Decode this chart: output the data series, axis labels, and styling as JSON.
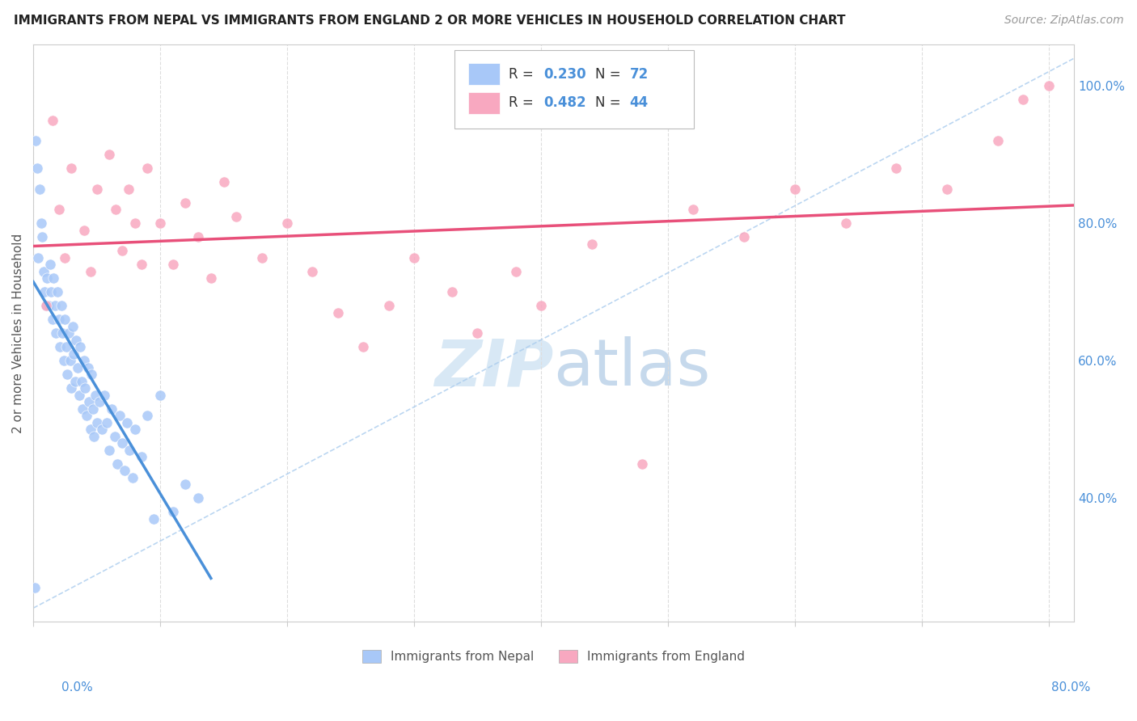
{
  "title": "IMMIGRANTS FROM NEPAL VS IMMIGRANTS FROM ENGLAND 2 OR MORE VEHICLES IN HOUSEHOLD CORRELATION CHART",
  "source": "Source: ZipAtlas.com",
  "ylabel": "2 or more Vehicles in Household",
  "right_yticks": [
    "40.0%",
    "60.0%",
    "80.0%",
    "100.0%"
  ],
  "right_ytick_vals": [
    0.4,
    0.6,
    0.8,
    1.0
  ],
  "nepal_color": "#a8c8f8",
  "england_color": "#f8a8c0",
  "nepal_line_color": "#4a90d9",
  "england_line_color": "#e8507a",
  "watermark_zip": "ZIP",
  "watermark_atlas": "atlas",
  "xlim": [
    0.0,
    0.82
  ],
  "ylim": [
    0.22,
    1.06
  ],
  "nepal_x": [
    0.001,
    0.002,
    0.003,
    0.004,
    0.005,
    0.006,
    0.007,
    0.008,
    0.009,
    0.01,
    0.011,
    0.012,
    0.013,
    0.014,
    0.015,
    0.016,
    0.017,
    0.018,
    0.019,
    0.02,
    0.021,
    0.022,
    0.023,
    0.024,
    0.025,
    0.026,
    0.027,
    0.028,
    0.029,
    0.03,
    0.031,
    0.032,
    0.033,
    0.034,
    0.035,
    0.036,
    0.037,
    0.038,
    0.039,
    0.04,
    0.041,
    0.042,
    0.043,
    0.044,
    0.045,
    0.046,
    0.047,
    0.048,
    0.049,
    0.05,
    0.052,
    0.054,
    0.056,
    0.058,
    0.06,
    0.062,
    0.064,
    0.066,
    0.068,
    0.07,
    0.072,
    0.074,
    0.076,
    0.078,
    0.08,
    0.085,
    0.09,
    0.095,
    0.1,
    0.11,
    0.12,
    0.13
  ],
  "nepal_y": [
    0.27,
    0.92,
    0.88,
    0.75,
    0.85,
    0.8,
    0.78,
    0.73,
    0.7,
    0.68,
    0.72,
    0.68,
    0.74,
    0.7,
    0.66,
    0.72,
    0.68,
    0.64,
    0.7,
    0.66,
    0.62,
    0.68,
    0.64,
    0.6,
    0.66,
    0.62,
    0.58,
    0.64,
    0.6,
    0.56,
    0.65,
    0.61,
    0.57,
    0.63,
    0.59,
    0.55,
    0.62,
    0.57,
    0.53,
    0.6,
    0.56,
    0.52,
    0.59,
    0.54,
    0.5,
    0.58,
    0.53,
    0.49,
    0.55,
    0.51,
    0.54,
    0.5,
    0.55,
    0.51,
    0.47,
    0.53,
    0.49,
    0.45,
    0.52,
    0.48,
    0.44,
    0.51,
    0.47,
    0.43,
    0.5,
    0.46,
    0.52,
    0.37,
    0.55,
    0.38,
    0.42,
    0.4
  ],
  "england_x": [
    0.01,
    0.015,
    0.02,
    0.025,
    0.03,
    0.04,
    0.045,
    0.05,
    0.06,
    0.065,
    0.07,
    0.075,
    0.08,
    0.085,
    0.09,
    0.1,
    0.11,
    0.12,
    0.13,
    0.14,
    0.15,
    0.16,
    0.18,
    0.2,
    0.22,
    0.24,
    0.26,
    0.28,
    0.3,
    0.33,
    0.35,
    0.38,
    0.4,
    0.44,
    0.48,
    0.52,
    0.56,
    0.6,
    0.64,
    0.68,
    0.72,
    0.76,
    0.78,
    0.8
  ],
  "england_y": [
    0.68,
    0.95,
    0.82,
    0.75,
    0.88,
    0.79,
    0.73,
    0.85,
    0.9,
    0.82,
    0.76,
    0.85,
    0.8,
    0.74,
    0.88,
    0.8,
    0.74,
    0.83,
    0.78,
    0.72,
    0.86,
    0.81,
    0.75,
    0.8,
    0.73,
    0.67,
    0.62,
    0.68,
    0.75,
    0.7,
    0.64,
    0.73,
    0.68,
    0.77,
    0.45,
    0.82,
    0.78,
    0.85,
    0.8,
    0.88,
    0.85,
    0.92,
    0.98,
    1.0
  ]
}
